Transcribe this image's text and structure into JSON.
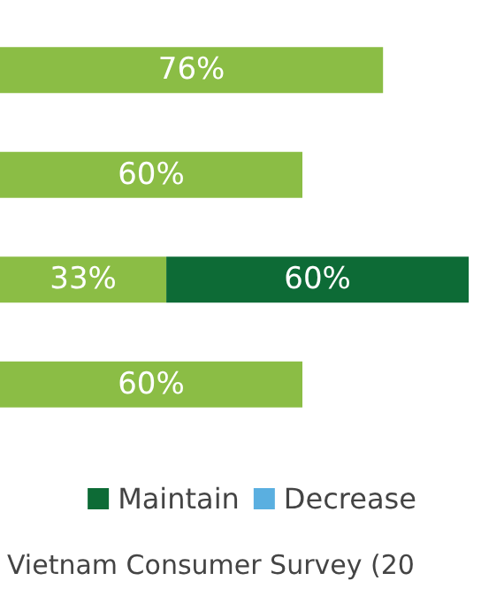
{
  "chart_data": {
    "type": "bar",
    "orientation": "horizontal",
    "stacked": true,
    "categories": [
      null,
      null,
      null,
      null
    ],
    "series": [
      {
        "color": "#8bbd45",
        "values": [
          76,
          60,
          33,
          60
        ],
        "value_labels": [
          "76%",
          "60%",
          "33%",
          "60%"
        ]
      },
      {
        "name": "Maintain",
        "color": "#0d6b36",
        "values": [
          null,
          null,
          60,
          null
        ],
        "value_labels": [
          null,
          null,
          "60%",
          null
        ]
      },
      {
        "name": "Decrease",
        "color": "#5aafe0",
        "values": [
          null,
          null,
          null,
          null
        ]
      }
    ],
    "legend": "bottom",
    "grid": false,
    "tick_labels": false,
    "annotations": [
      "Vietnam Consumer Survey (20"
    ]
  }
}
